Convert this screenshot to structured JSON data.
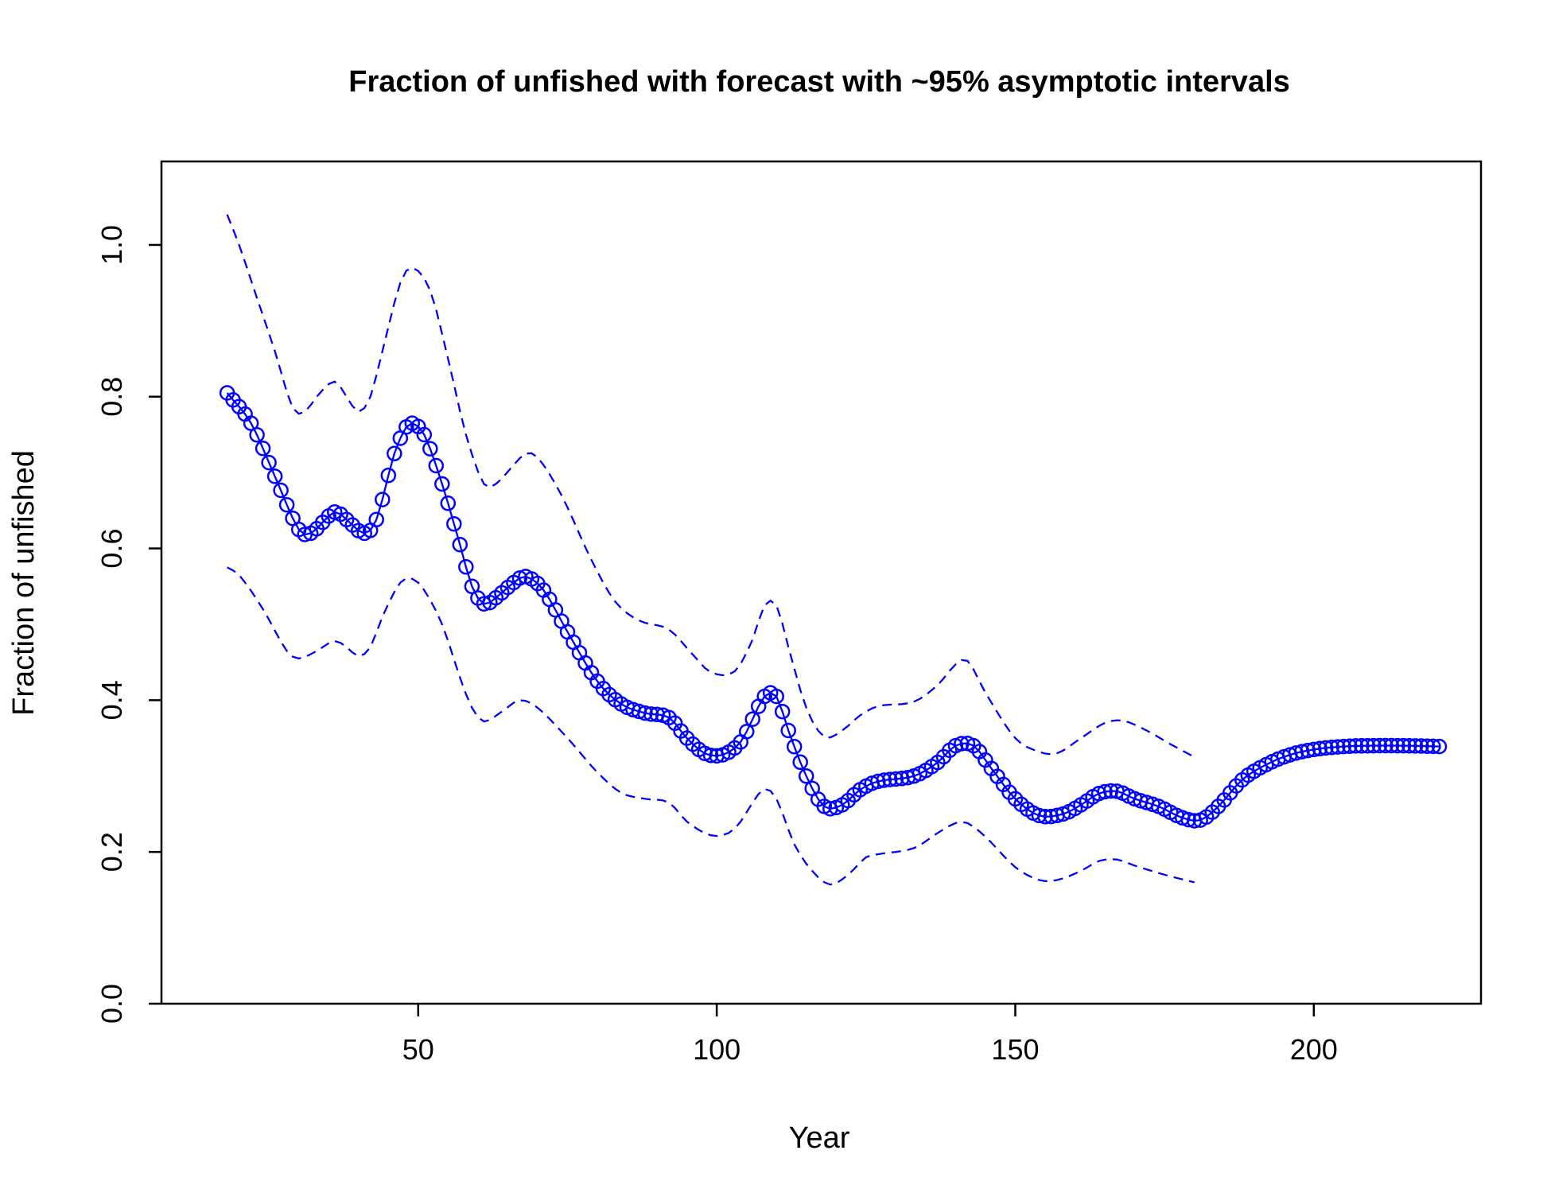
{
  "chart_data": {
    "type": "line",
    "title": "Fraction of unfished with forecast with ~95% asymptotic intervals",
    "xlabel": "Year",
    "ylabel": "Fraction of unfished",
    "xlim": [
      7,
      228
    ],
    "ylim": [
      0,
      1.11
    ],
    "x_ticks": [
      50,
      100,
      150,
      200
    ],
    "y_ticks": [
      0.0,
      0.2,
      0.4,
      0.6,
      0.8,
      1.0
    ],
    "x_tick_labels": [
      "50",
      "100",
      "150",
      "200"
    ],
    "y_tick_labels": [
      "0.0",
      "0.2",
      "0.4",
      "0.6",
      "0.8",
      "1.0"
    ],
    "grid": false,
    "colors": {
      "series": "#0000ff",
      "axis": "#000000"
    },
    "series": [
      {
        "role": "estimate",
        "style": "line-with-open-circles",
        "key_points": [
          [
            18,
            0.805
          ],
          [
            22,
            0.765
          ],
          [
            26,
            0.695
          ],
          [
            30,
            0.625
          ],
          [
            32,
            0.62
          ],
          [
            36,
            0.648
          ],
          [
            38,
            0.638
          ],
          [
            41,
            0.62
          ],
          [
            43,
            0.638
          ],
          [
            46,
            0.725
          ],
          [
            48,
            0.76
          ],
          [
            49,
            0.765
          ],
          [
            51,
            0.75
          ],
          [
            54,
            0.685
          ],
          [
            57,
            0.605
          ],
          [
            59,
            0.55
          ],
          [
            61,
            0.527
          ],
          [
            63,
            0.535
          ],
          [
            66,
            0.555
          ],
          [
            68,
            0.563
          ],
          [
            71,
            0.545
          ],
          [
            75,
            0.49
          ],
          [
            80,
            0.425
          ],
          [
            84,
            0.395
          ],
          [
            88,
            0.383
          ],
          [
            92,
            0.377
          ],
          [
            95,
            0.35
          ],
          [
            98,
            0.33
          ],
          [
            101,
            0.328
          ],
          [
            104,
            0.345
          ],
          [
            106,
            0.375
          ],
          [
            108,
            0.405
          ],
          [
            110,
            0.405
          ],
          [
            112,
            0.36
          ],
          [
            115,
            0.3
          ],
          [
            118,
            0.26
          ],
          [
            121,
            0.262
          ],
          [
            124,
            0.282
          ],
          [
            127,
            0.293
          ],
          [
            133,
            0.3
          ],
          [
            137,
            0.318
          ],
          [
            140,
            0.34
          ],
          [
            143,
            0.34
          ],
          [
            146,
            0.31
          ],
          [
            150,
            0.27
          ],
          [
            154,
            0.248
          ],
          [
            158,
            0.25
          ],
          [
            161,
            0.262
          ],
          [
            164,
            0.277
          ],
          [
            167,
            0.28
          ],
          [
            170,
            0.27
          ],
          [
            174,
            0.26
          ],
          [
            178,
            0.245
          ],
          [
            181,
            0.242
          ],
          [
            184,
            0.26
          ],
          [
            188,
            0.295
          ],
          [
            192,
            0.315
          ],
          [
            196,
            0.328
          ],
          [
            200,
            0.335
          ],
          [
            205,
            0.339
          ],
          [
            210,
            0.34
          ],
          [
            215,
            0.34
          ],
          [
            221,
            0.339
          ]
        ]
      },
      {
        "role": "upper interval",
        "style": "dashed",
        "key_points": [
          [
            18,
            1.04
          ],
          [
            20,
            1.0
          ],
          [
            23,
            0.93
          ],
          [
            26,
            0.86
          ],
          [
            29,
            0.785
          ],
          [
            31,
            0.78
          ],
          [
            33,
            0.8
          ],
          [
            36,
            0.82
          ],
          [
            38,
            0.8
          ],
          [
            40,
            0.78
          ],
          [
            42,
            0.8
          ],
          [
            44,
            0.86
          ],
          [
            47,
            0.95
          ],
          [
            49,
            0.97
          ],
          [
            52,
            0.94
          ],
          [
            55,
            0.85
          ],
          [
            58,
            0.75
          ],
          [
            61,
            0.685
          ],
          [
            63,
            0.685
          ],
          [
            66,
            0.71
          ],
          [
            68,
            0.725
          ],
          [
            70,
            0.72
          ],
          [
            74,
            0.67
          ],
          [
            79,
            0.585
          ],
          [
            83,
            0.53
          ],
          [
            87,
            0.505
          ],
          [
            92,
            0.493
          ],
          [
            96,
            0.46
          ],
          [
            99,
            0.437
          ],
          [
            103,
            0.438
          ],
          [
            106,
            0.48
          ],
          [
            108,
            0.525
          ],
          [
            110,
            0.525
          ],
          [
            112,
            0.47
          ],
          [
            115,
            0.39
          ],
          [
            118,
            0.352
          ],
          [
            121,
            0.36
          ],
          [
            124,
            0.38
          ],
          [
            127,
            0.392
          ],
          [
            133,
            0.398
          ],
          [
            137,
            0.42
          ],
          [
            140,
            0.447
          ],
          [
            142,
            0.452
          ],
          [
            145,
            0.41
          ],
          [
            150,
            0.35
          ],
          [
            154,
            0.332
          ],
          [
            157,
            0.33
          ],
          [
            161,
            0.35
          ],
          [
            165,
            0.37
          ],
          [
            168,
            0.373
          ],
          [
            172,
            0.36
          ],
          [
            176,
            0.342
          ],
          [
            180,
            0.325
          ]
        ]
      },
      {
        "role": "lower interval",
        "style": "dashed",
        "key_points": [
          [
            18,
            0.575
          ],
          [
            20,
            0.565
          ],
          [
            24,
            0.52
          ],
          [
            28,
            0.465
          ],
          [
            30,
            0.455
          ],
          [
            33,
            0.465
          ],
          [
            36,
            0.478
          ],
          [
            38,
            0.47
          ],
          [
            40,
            0.458
          ],
          [
            42,
            0.47
          ],
          [
            44,
            0.51
          ],
          [
            47,
            0.555
          ],
          [
            49,
            0.56
          ],
          [
            51,
            0.545
          ],
          [
            54,
            0.5
          ],
          [
            57,
            0.43
          ],
          [
            59,
            0.39
          ],
          [
            61,
            0.372
          ],
          [
            64,
            0.385
          ],
          [
            67,
            0.4
          ],
          [
            70,
            0.39
          ],
          [
            75,
            0.35
          ],
          [
            80,
            0.305
          ],
          [
            84,
            0.278
          ],
          [
            88,
            0.27
          ],
          [
            92,
            0.265
          ],
          [
            95,
            0.24
          ],
          [
            99,
            0.222
          ],
          [
            102,
            0.225
          ],
          [
            104,
            0.24
          ],
          [
            106,
            0.265
          ],
          [
            108,
            0.283
          ],
          [
            110,
            0.27
          ],
          [
            113,
            0.21
          ],
          [
            116,
            0.175
          ],
          [
            119,
            0.157
          ],
          [
            122,
            0.17
          ],
          [
            125,
            0.193
          ],
          [
            127,
            0.197
          ],
          [
            133,
            0.205
          ],
          [
            137,
            0.225
          ],
          [
            140,
            0.238
          ],
          [
            142,
            0.238
          ],
          [
            145,
            0.22
          ],
          [
            150,
            0.18
          ],
          [
            154,
            0.163
          ],
          [
            157,
            0.163
          ],
          [
            161,
            0.175
          ],
          [
            164,
            0.188
          ],
          [
            167,
            0.19
          ],
          [
            170,
            0.182
          ],
          [
            175,
            0.17
          ],
          [
            180,
            0.16
          ]
        ]
      }
    ]
  }
}
